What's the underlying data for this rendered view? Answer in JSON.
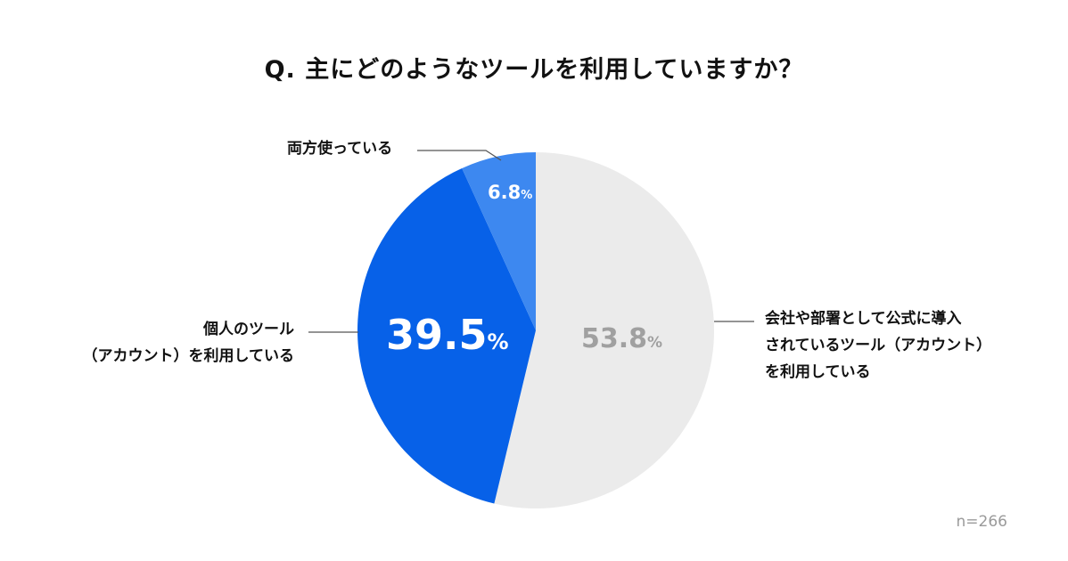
{
  "chart_data": {
    "type": "pie",
    "title": "Q. 主にどのようなツールを利用していますか？",
    "slices": [
      {
        "label_lines": [
          "会社や部署として公式に導入",
          "されているツール（アカウント）",
          "を利用している"
        ],
        "value": 53.8,
        "color": "#ebebeb",
        "value_color": "#a0a0a0"
      },
      {
        "label_lines": [
          "個人のツール",
          "（アカウント）を利用している"
        ],
        "value": 39.5,
        "color": "#0761e8",
        "value_color": "#ffffff"
      },
      {
        "label_lines": [
          "両方使っている"
        ],
        "value": 6.8,
        "color": "#3d88f0",
        "value_color": "#ffffff"
      }
    ],
    "unit": "%",
    "start": "12 o'clock",
    "direction": "clockwise",
    "note": "n=266"
  }
}
